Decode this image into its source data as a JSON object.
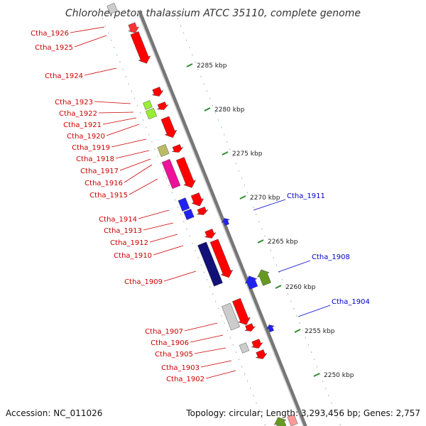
{
  "title": "Chloroherpeton thalassium ATCC 35110, complete genome",
  "accession": "Accession: NC_011026",
  "summary": "Topology: circular; Length: 3,293,456 bp; Genes: 2,757",
  "colors": {
    "forward_gene": "#ff0000",
    "reverse_gene": "#2222ee",
    "left_label": "#cc0000",
    "right_label": "#0000cc",
    "strand_line": "#999999",
    "tick_dot": "#2e8b2e"
  },
  "scale_ticks": [
    "2285 kbp",
    "2280 kbp",
    "2275 kbp",
    "2270 kbp",
    "2265 kbp",
    "2260 kbp",
    "2255 kbp",
    "2250 kbp"
  ],
  "left_labels": [
    "Ctha_1926",
    "Ctha_1925",
    "Ctha_1924",
    "Ctha_1923",
    "Ctha_1922",
    "Ctha_1921",
    "Ctha_1920",
    "Ctha_1919",
    "Ctha_1918",
    "Ctha_1917",
    "Ctha_1916",
    "Ctha_1915",
    "Ctha_1914",
    "Ctha_1913",
    "Ctha_1912",
    "Ctha_1910",
    "Ctha_1909",
    "Ctha_1907",
    "Ctha_1906",
    "Ctha_1905",
    "Ctha_1903",
    "Ctha_1902"
  ],
  "right_labels": [
    "Ctha_1911",
    "Ctha_1908",
    "Ctha_1904"
  ]
}
